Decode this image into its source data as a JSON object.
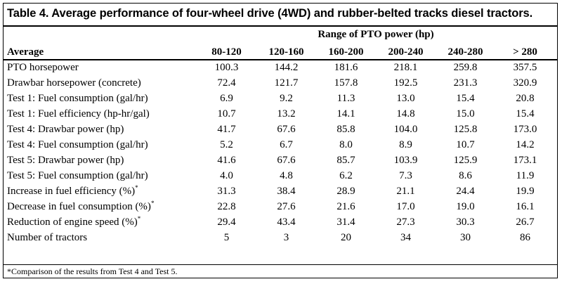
{
  "title": "Table 4. Average performance of four-wheel drive (4WD) and rubber-belted tracks diesel tractors.",
  "range_header": "Range of PTO power (hp)",
  "columns": {
    "label": "Average",
    "ranges": [
      "80-120",
      "120-160",
      "160-200",
      "200-240",
      "240-280",
      "> 280"
    ]
  },
  "rows": [
    {
      "label": "PTO horsepower",
      "mark": "",
      "values": [
        "100.3",
        "144.2",
        "181.6",
        "218.1",
        "259.8",
        "357.5"
      ]
    },
    {
      "label": "Drawbar horsepower (concrete)",
      "mark": "",
      "values": [
        "72.4",
        "121.7",
        "157.8",
        "192.5",
        "231.3",
        "320.9"
      ]
    },
    {
      "label": "Test 1: Fuel consumption (gal/hr)",
      "mark": "",
      "values": [
        "6.9",
        "9.2",
        "11.3",
        "13.0",
        "15.4",
        "20.8"
      ]
    },
    {
      "label": "Test 1: Fuel efficiency (hp-hr/gal)",
      "mark": "",
      "values": [
        "10.7",
        "13.2",
        "14.1",
        "14.8",
        "15.0",
        "15.4"
      ]
    },
    {
      "label": "Test 4: Drawbar power (hp)",
      "mark": "",
      "values": [
        "41.7",
        "67.6",
        "85.8",
        "104.0",
        "125.8",
        "173.0"
      ]
    },
    {
      "label": "Test 4: Fuel consumption (gal/hr)",
      "mark": "",
      "values": [
        "5.2",
        "6.7",
        "8.0",
        "8.9",
        "10.7",
        "14.2"
      ]
    },
    {
      "label": "Test 5: Drawbar power (hp)",
      "mark": "",
      "values": [
        "41.6",
        "67.6",
        "85.7",
        "103.9",
        "125.9",
        "173.1"
      ]
    },
    {
      "label": "Test 5: Fuel consumption (gal/hr)",
      "mark": "",
      "values": [
        "4.0",
        "4.8",
        "6.2",
        "7.3",
        "8.6",
        "11.9"
      ]
    },
    {
      "label": "Increase in fuel efficiency (%)",
      "mark": "*",
      "values": [
        "31.3",
        "38.4",
        "28.9",
        "21.1",
        "24.4",
        "19.9"
      ]
    },
    {
      "label": "Decrease in fuel consumption (%)",
      "mark": "*",
      "values": [
        "22.8",
        "27.6",
        "21.6",
        "17.0",
        "19.0",
        "16.1"
      ]
    },
    {
      "label": "Reduction of engine speed (%)",
      "mark": "*",
      "values": [
        "29.4",
        "43.4",
        "31.4",
        "27.3",
        "30.3",
        "26.7"
      ]
    },
    {
      "label": "Number of tractors",
      "mark": "",
      "values": [
        "5",
        "3",
        "20",
        "34",
        "30",
        "86"
      ]
    }
  ],
  "footnote": "*Comparison of the results from Test 4 and Test 5."
}
